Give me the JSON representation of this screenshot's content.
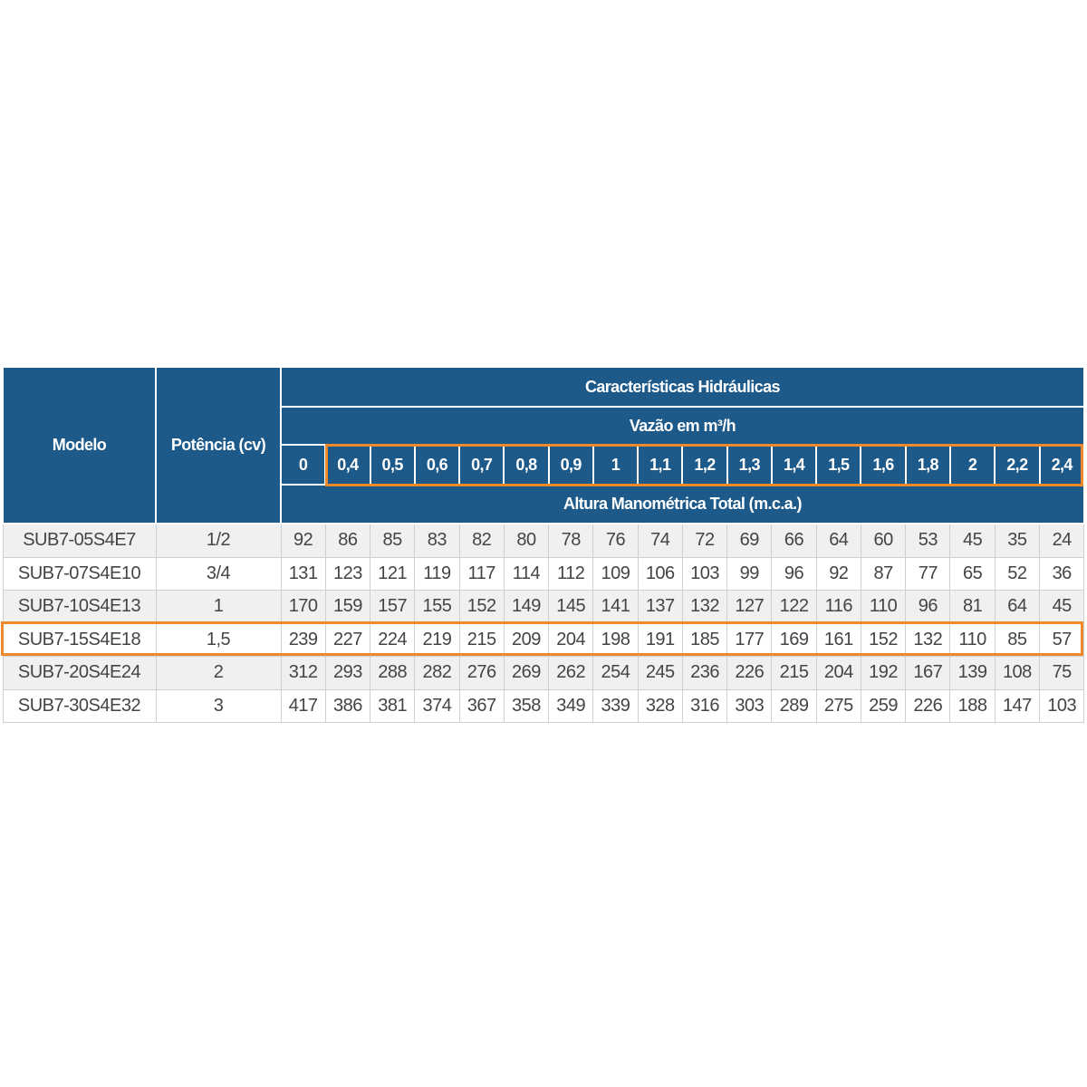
{
  "table": {
    "headers": {
      "model": "Modelo",
      "power": "Potência (cv)",
      "hydraulics": "Características Hidráulicas",
      "flow_label": "Vazão em m³/h",
      "flows": [
        "0",
        "0,4",
        "0,5",
        "0,6",
        "0,7",
        "0,8",
        "0,9",
        "1",
        "1,1",
        "1,2",
        "1,3",
        "1,4",
        "1,5",
        "1,6",
        "1,8",
        "2",
        "2,2",
        "2,4"
      ],
      "head_label": "Altura Manométrica Total (m.c.a.)"
    },
    "rows": [
      [
        "SUB7-05S4E7",
        "1/2",
        92,
        86,
        85,
        83,
        82,
        80,
        78,
        76,
        74,
        72,
        69,
        66,
        64,
        60,
        53,
        45,
        35,
        24
      ],
      [
        "SUB7-07S4E10",
        "3/4",
        131,
        123,
        121,
        119,
        117,
        114,
        112,
        109,
        106,
        103,
        99,
        96,
        92,
        87,
        77,
        65,
        52,
        36
      ],
      [
        "SUB7-10S4E13",
        "1",
        170,
        159,
        157,
        155,
        152,
        149,
        145,
        141,
        137,
        132,
        127,
        122,
        116,
        110,
        96,
        81,
        64,
        45
      ],
      [
        "SUB7-15S4E18",
        "1,5",
        239,
        227,
        224,
        219,
        215,
        209,
        204,
        198,
        191,
        185,
        177,
        169,
        161,
        152,
        132,
        110,
        85,
        57
      ],
      [
        "SUB7-20S4E24",
        "2",
        312,
        293,
        288,
        282,
        276,
        269,
        262,
        254,
        245,
        236,
        226,
        215,
        204,
        192,
        167,
        139,
        108,
        75
      ],
      [
        "SUB7-30S4E32",
        "3",
        417,
        386,
        381,
        374,
        367,
        358,
        349,
        339,
        328,
        316,
        303,
        289,
        275,
        259,
        226,
        188,
        147,
        103
      ]
    ]
  }
}
